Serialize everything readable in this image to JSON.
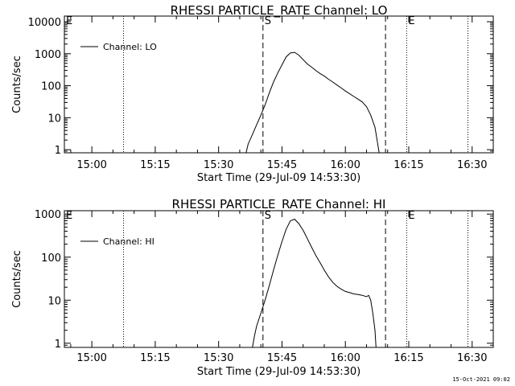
{
  "footer_timestamp": "15-Oct-2021 09:02",
  "chart_data": [
    {
      "type": "line",
      "title": "RHESSI PARTICLE_RATE Channel: LO",
      "xlabel": "Start Time (29-Jul-09 14:53:30)",
      "ylabel": "Counts/sec",
      "x_ticks": [
        "15:00",
        "15:15",
        "15:30",
        "15:45",
        "16:00",
        "16:15",
        "16:30"
      ],
      "y_ticks": [
        "1",
        "10",
        "100",
        "1000",
        "10000"
      ],
      "xlim": [
        "14:53:30",
        "16:35:00"
      ],
      "ylim": [
        0.8,
        15000
      ],
      "yscale": "log",
      "grid": false,
      "legend": {
        "position": "top-left",
        "entries": [
          "Channel: LO"
        ]
      },
      "markers": [
        {
          "label": "E",
          "time": "14:53:30",
          "style": "dotted"
        },
        {
          "label": "",
          "time": "15:07:30",
          "style": "dotted"
        },
        {
          "label": "S",
          "time": "15:40:30",
          "style": "dashed"
        },
        {
          "label": "",
          "time": "16:09:30",
          "style": "dashed"
        },
        {
          "label": "E",
          "time": "16:14:30",
          "style": "dotted"
        },
        {
          "label": "",
          "time": "16:29:00",
          "style": "dotted"
        }
      ],
      "series": [
        {
          "name": "Channel: LO",
          "points": [
            [
              "15:36:30",
              0.8
            ],
            [
              "15:37:00",
              1.5
            ],
            [
              "15:38:00",
              3
            ],
            [
              "15:39:00",
              6
            ],
            [
              "15:40:00",
              12
            ],
            [
              "15:41:00",
              25
            ],
            [
              "15:42:00",
              60
            ],
            [
              "15:43:00",
              130
            ],
            [
              "15:44:00",
              250
            ],
            [
              "15:45:00",
              450
            ],
            [
              "15:46:00",
              800
            ],
            [
              "15:47:00",
              1050
            ],
            [
              "15:48:00",
              1100
            ],
            [
              "15:49:00",
              900
            ],
            [
              "15:50:00",
              650
            ],
            [
              "15:51:00",
              480
            ],
            [
              "15:52:00",
              380
            ],
            [
              "15:53:00",
              300
            ],
            [
              "15:54:00",
              240
            ],
            [
              "15:55:00",
              200
            ],
            [
              "15:56:00",
              160
            ],
            [
              "15:57:00",
              130
            ],
            [
              "15:58:00",
              105
            ],
            [
              "15:59:00",
              85
            ],
            [
              "16:00:00",
              68
            ],
            [
              "16:01:00",
              56
            ],
            [
              "16:02:00",
              46
            ],
            [
              "16:03:00",
              38
            ],
            [
              "16:04:00",
              31
            ],
            [
              "16:05:00",
              22
            ],
            [
              "16:06:00",
              12
            ],
            [
              "16:07:00",
              5
            ],
            [
              "16:07:30",
              2
            ],
            [
              "16:08:00",
              0.8
            ]
          ]
        }
      ]
    },
    {
      "type": "line",
      "title": "RHESSI PARTICLE_RATE Channel: HI",
      "xlabel": "Start Time (29-Jul-09 14:53:30)",
      "ylabel": "Counts/sec",
      "x_ticks": [
        "15:00",
        "15:15",
        "15:30",
        "15:45",
        "16:00",
        "16:15",
        "16:30"
      ],
      "y_ticks": [
        "1",
        "10",
        "100",
        "1000"
      ],
      "xlim": [
        "14:53:30",
        "16:35:00"
      ],
      "ylim": [
        0.8,
        1200
      ],
      "yscale": "log",
      "grid": false,
      "legend": {
        "position": "top-left",
        "entries": [
          "Channel: HI"
        ]
      },
      "markers": [
        {
          "label": "E",
          "time": "14:53:30",
          "style": "dotted"
        },
        {
          "label": "",
          "time": "15:07:30",
          "style": "dotted"
        },
        {
          "label": "S",
          "time": "15:40:30",
          "style": "dashed"
        },
        {
          "label": "",
          "time": "16:09:30",
          "style": "dashed"
        },
        {
          "label": "E",
          "time": "16:14:30",
          "style": "dotted"
        },
        {
          "label": "",
          "time": "16:29:00",
          "style": "dotted"
        }
      ],
      "series": [
        {
          "name": "Channel: HI",
          "points": [
            [
              "15:38:00",
              0.8
            ],
            [
              "15:38:30",
              1.5
            ],
            [
              "15:39:00",
              2.5
            ],
            [
              "15:40:00",
              5
            ],
            [
              "15:41:00",
              10
            ],
            [
              "15:42:00",
              22
            ],
            [
              "15:43:00",
              50
            ],
            [
              "15:44:00",
              110
            ],
            [
              "15:45:00",
              230
            ],
            [
              "15:46:00",
              450
            ],
            [
              "15:47:00",
              700
            ],
            [
              "15:48:00",
              760
            ],
            [
              "15:49:00",
              600
            ],
            [
              "15:50:00",
              420
            ],
            [
              "15:51:00",
              270
            ],
            [
              "15:52:00",
              170
            ],
            [
              "15:53:00",
              110
            ],
            [
              "15:54:00",
              75
            ],
            [
              "15:55:00",
              50
            ],
            [
              "15:56:00",
              35
            ],
            [
              "15:57:00",
              26
            ],
            [
              "15:58:00",
              21
            ],
            [
              "15:59:00",
              18
            ],
            [
              "16:00:00",
              16
            ],
            [
              "16:01:00",
              15
            ],
            [
              "16:02:00",
              14
            ],
            [
              "16:03:00",
              13.5
            ],
            [
              "16:04:00",
              13
            ],
            [
              "16:05:00",
              12
            ],
            [
              "16:05:30",
              13
            ],
            [
              "16:06:00",
              10
            ],
            [
              "16:06:30",
              5
            ],
            [
              "16:07:00",
              2
            ],
            [
              "16:07:15",
              0.8
            ]
          ]
        }
      ]
    }
  ]
}
